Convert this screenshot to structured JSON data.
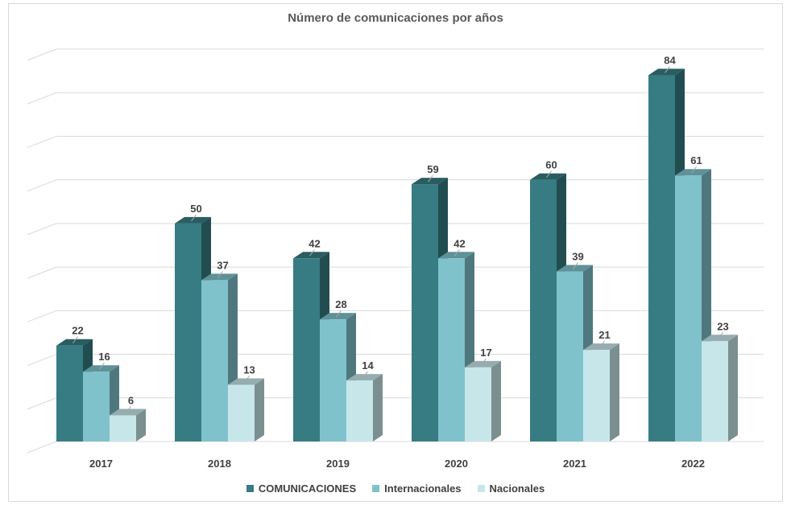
{
  "chart_data": {
    "type": "bar",
    "title": "Número de comunicaciones por años",
    "categories": [
      "2017",
      "2018",
      "2019",
      "2020",
      "2021",
      "2022"
    ],
    "series": [
      {
        "name": "COMUNICACIONES",
        "values": [
          22,
          50,
          42,
          59,
          60,
          84
        ],
        "color": "#367c82"
      },
      {
        "name": "Internacionales",
        "values": [
          16,
          37,
          28,
          42,
          39,
          61
        ],
        "color": "#7fc2cb"
      },
      {
        "name": "Nacionales",
        "values": [
          6,
          13,
          14,
          17,
          21,
          23
        ],
        "color": "#c7e6ea"
      }
    ],
    "ylim": [
      0,
      90
    ],
    "grid": true,
    "legend_position": "bottom",
    "style": "3d-clustered-column"
  }
}
